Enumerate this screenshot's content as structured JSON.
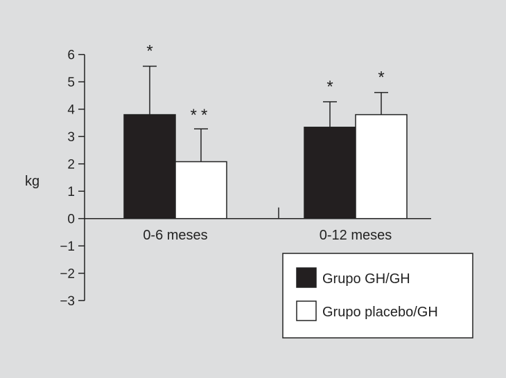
{
  "chart_data": {
    "type": "bar",
    "title": "",
    "xlabel": "",
    "ylabel": "kg",
    "ylim": [
      -3,
      6
    ],
    "yticks": [
      "6",
      "5",
      "4",
      "3",
      "2",
      "1",
      "0",
      "−1",
      "−2",
      "−3"
    ],
    "categories": [
      "0-6 meses",
      "0-12 meses"
    ],
    "series": [
      {
        "name": "Grupo GH/GH",
        "color": "#231f20",
        "values": [
          3.8,
          3.34
        ],
        "error_upper": [
          5.57,
          4.27
        ],
        "annotations": [
          "*",
          "*"
        ]
      },
      {
        "name": "Grupo placebo/GH",
        "color": "#ffffff",
        "values": [
          2.08,
          3.8
        ],
        "error_upper": [
          3.28,
          4.61
        ],
        "annotations": [
          "**",
          "*"
        ]
      }
    ],
    "grid": false,
    "legend_position": "bottom-right"
  }
}
